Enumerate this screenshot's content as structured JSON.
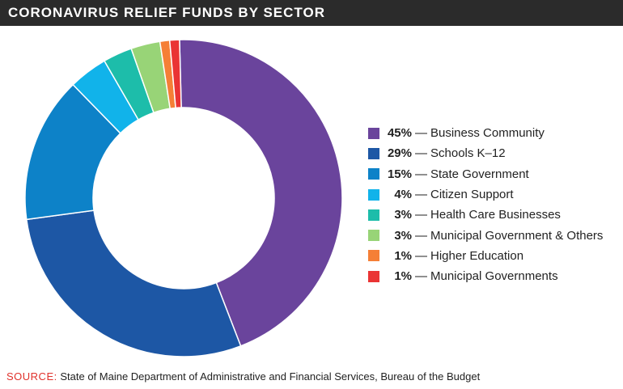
{
  "header": {
    "title": "CORONAVIRUS RELIEF FUNDS BY SECTOR"
  },
  "chart_data": {
    "type": "pie",
    "donut": true,
    "legend_position": "right",
    "slices": [
      {
        "label": "Business Community",
        "value": 45,
        "display": "45%",
        "color": "#6a449c"
      },
      {
        "label": "Schools K–12",
        "value": 29,
        "display": "29%",
        "color": "#1d57a5"
      },
      {
        "label": "State Government",
        "value": 15,
        "display": "15%",
        "color": "#0d82c8"
      },
      {
        "label": "Citizen Support",
        "value": 4,
        "display": "4%",
        "color": "#11b3ea"
      },
      {
        "label": "Health Care Businesses",
        "value": 3,
        "display": "3%",
        "color": "#1dbdaa"
      },
      {
        "label": "Municipal Government & Others",
        "value": 3,
        "display": "3%",
        "color": "#98d477"
      },
      {
        "label": "Higher Education",
        "value": 1,
        "display": "1%",
        "color": "#f57f36"
      },
      {
        "label": "Municipal Governments",
        "value": 1,
        "display": "1%",
        "color": "#ea3434"
      }
    ]
  },
  "legend": {
    "separator": "—"
  },
  "footer": {
    "source_label": "SOURCE:",
    "source_text": "State of Maine Department of Administrative and Financial Services, Bureau of the Budget"
  }
}
